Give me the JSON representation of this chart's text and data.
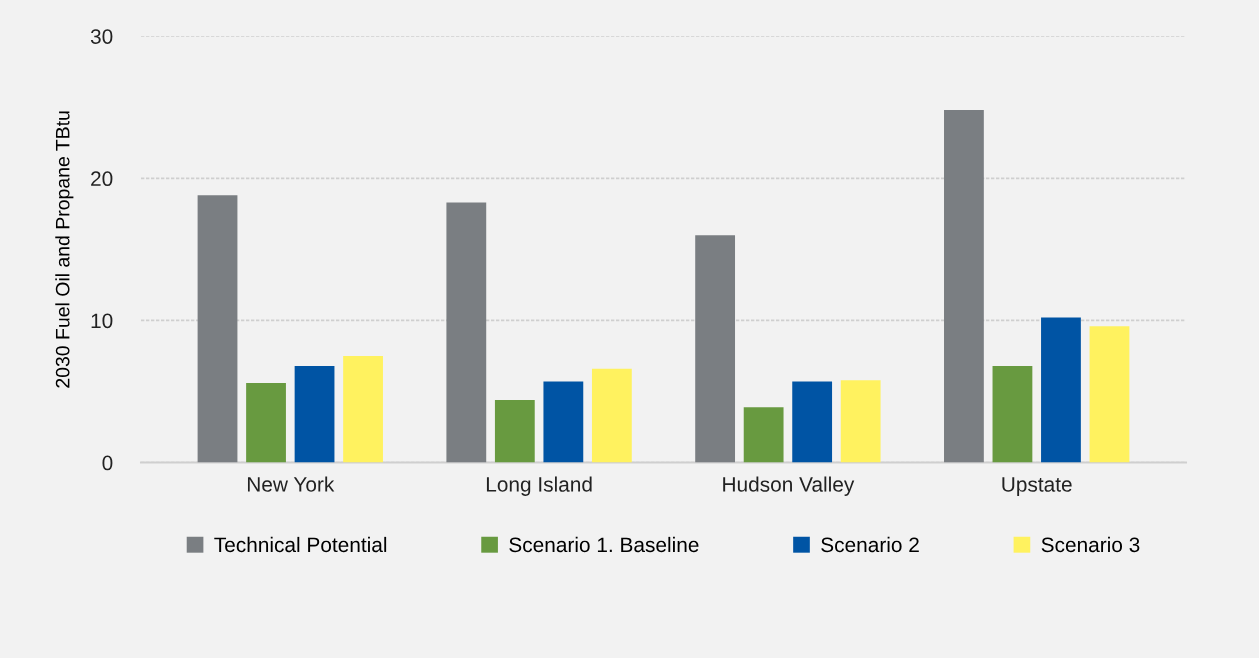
{
  "chart_data": {
    "type": "bar",
    "ylabel": "2030 Fuel Oil and Propane TBtu",
    "categories": [
      "New York",
      "Long Island",
      "Hudson Valley",
      "Upstate"
    ],
    "series": [
      {
        "name": "Technical Potential",
        "color": "#7a7e82",
        "values": [
          18.8,
          18.3,
          16.0,
          24.8
        ]
      },
      {
        "name": "Scenario 1. Baseline",
        "color": "#689a40",
        "values": [
          5.6,
          4.4,
          3.9,
          6.8
        ]
      },
      {
        "name": "Scenario 2",
        "color": "#0054a4",
        "values": [
          6.8,
          5.7,
          5.7,
          10.2
        ]
      },
      {
        "name": "Scenario 3",
        "color": "#fff25f",
        "values": [
          7.5,
          6.6,
          5.8,
          9.6
        ]
      }
    ],
    "ylim": [
      0,
      30
    ],
    "yticks": [
      0,
      10,
      20,
      30
    ],
    "grid": "y",
    "legend": "bottom"
  }
}
